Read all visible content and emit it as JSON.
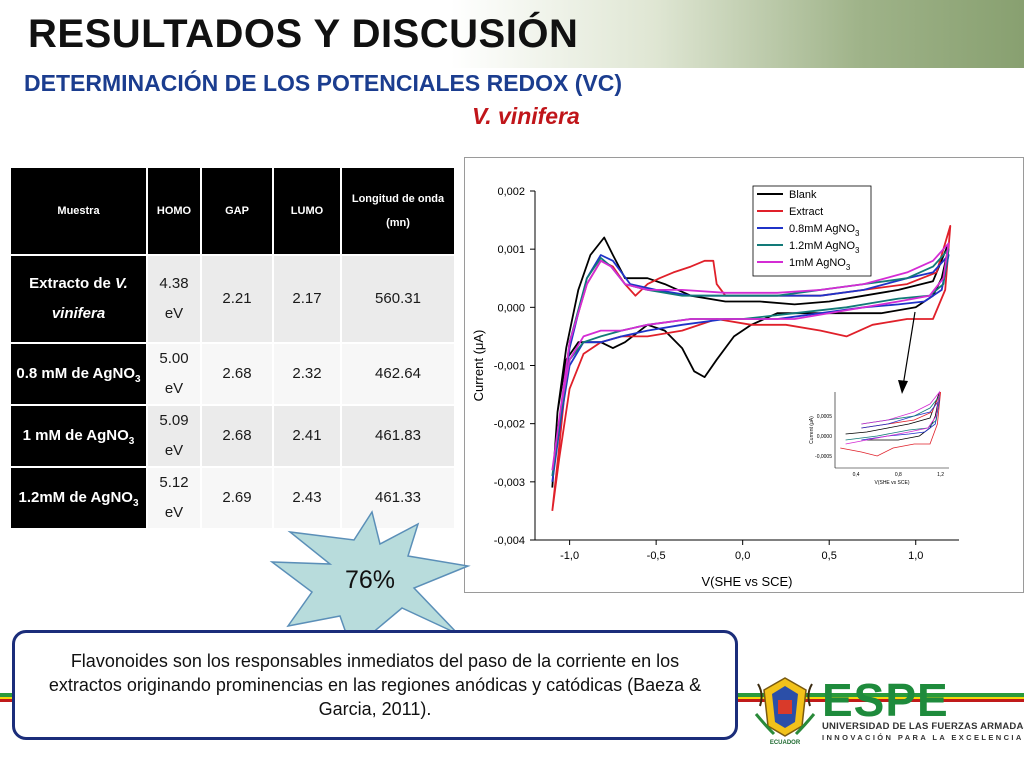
{
  "header": {
    "title": "RESULTADOS Y DISCUSIÓN",
    "subtitle": "DETERMINACIÓN DE LOS POTENCIALES REDOX (VC)",
    "species": "V. vinifera"
  },
  "table": {
    "headers": [
      "Muestra",
      "HOMO",
      "GAP",
      "LUMO",
      "Longitud de onda (mn)"
    ],
    "rows": [
      {
        "muestra": "Extracto de ",
        "muestra_italic": "V. vinifera",
        "homo": "4.38 eV",
        "gap": "2.21",
        "lumo": "2.17",
        "wavelength": "560.31"
      },
      {
        "muestra": "0.8 mM de AgNO",
        "sub": "3",
        "homo": "5.00 eV",
        "gap": "2.68",
        "lumo": "2.32",
        "wavelength": "462.64"
      },
      {
        "muestra": "1 mM de AgNO",
        "sub": "3",
        "homo": "5.09 eV",
        "gap": "2.68",
        "lumo": "2.41",
        "wavelength": "461.83"
      },
      {
        "muestra": "1.2mM de AgNO",
        "sub": "3",
        "homo": "5.12 eV",
        "gap": "2.69",
        "lumo": "2.43",
        "wavelength": "461.33"
      }
    ]
  },
  "chart_data": {
    "type": "line",
    "xlabel": "V(SHE vs SCE)",
    "ylabel": "Current (μA)",
    "xlim": [
      -1.2,
      1.25
    ],
    "ylim": [
      -0.004,
      0.002
    ],
    "x_ticks": [
      "-1,0",
      "-0,5",
      "0,0",
      "0,5",
      "1,0"
    ],
    "y_ticks": [
      "0,002",
      "0,001",
      "0,000",
      "-0,001",
      "-0,002",
      "-0,003",
      "-0,004"
    ],
    "legend_position": "top-right",
    "grid": false,
    "series": [
      {
        "name": "Blank",
        "color": "#000000",
        "legend": "Blank",
        "points": [
          [
            -1.1,
            -0.0031
          ],
          [
            -1.07,
            -0.0018
          ],
          [
            -1.02,
            -0.0009
          ],
          [
            -0.95,
            -0.0006
          ],
          [
            -0.88,
            -0.0006
          ],
          [
            -0.82,
            -0.0006
          ],
          [
            -0.75,
            -0.0007
          ],
          [
            -0.68,
            -0.0006
          ],
          [
            -0.55,
            -0.0003
          ],
          [
            -0.45,
            -0.0004
          ],
          [
            -0.35,
            -0.0007
          ],
          [
            -0.28,
            -0.0011
          ],
          [
            -0.22,
            -0.0012
          ],
          [
            -0.15,
            -0.0009
          ],
          [
            -0.05,
            -0.0005
          ],
          [
            0.05,
            -0.0003
          ],
          [
            0.2,
            -0.0001
          ],
          [
            0.5,
            -0.0001
          ],
          [
            0.8,
            -0.0001
          ],
          [
            1.0,
            0.0
          ],
          [
            1.1,
            0.0002
          ],
          [
            1.15,
            0.0005
          ],
          [
            1.18,
            0.0009
          ],
          [
            1.19,
            0.0011
          ],
          [
            1.1,
            0.00045
          ],
          [
            0.9,
            0.0003
          ],
          [
            0.7,
            0.0002
          ],
          [
            0.5,
            0.0001
          ],
          [
            0.3,
            5e-05
          ],
          [
            0.1,
            0.0001
          ],
          [
            -0.1,
            0.0001
          ],
          [
            -0.3,
            0.0002
          ],
          [
            -0.45,
            0.0004
          ],
          [
            -0.55,
            0.0005
          ],
          [
            -0.6,
            0.0005
          ],
          [
            -0.68,
            0.0005
          ],
          [
            -0.75,
            0.0009
          ],
          [
            -0.8,
            0.0012
          ],
          [
            -0.88,
            0.0009
          ],
          [
            -0.95,
            0.0003
          ],
          [
            -1.02,
            -0.0007
          ],
          [
            -1.07,
            -0.0018
          ],
          [
            -1.1,
            -0.0031
          ]
        ]
      },
      {
        "name": "Extract",
        "color": "#e0202a",
        "legend": "Extract",
        "points": [
          [
            -1.1,
            -0.0035
          ],
          [
            -1.06,
            -0.0026
          ],
          [
            -1.0,
            -0.0014
          ],
          [
            -0.92,
            -0.0008
          ],
          [
            -0.82,
            -0.0006
          ],
          [
            -0.7,
            -0.0005
          ],
          [
            -0.55,
            -0.0005
          ],
          [
            -0.35,
            -0.0004
          ],
          [
            -0.15,
            -0.0002
          ],
          [
            0.05,
            -0.0003
          ],
          [
            0.25,
            -0.0003
          ],
          [
            0.45,
            -0.0004
          ],
          [
            0.6,
            -0.0005
          ],
          [
            0.75,
            -0.0003
          ],
          [
            0.95,
            -0.0002
          ],
          [
            1.1,
            -0.0002
          ],
          [
            1.17,
            0.0003
          ],
          [
            1.2,
            0.0014
          ],
          [
            1.12,
            0.0006
          ],
          [
            0.95,
            0.0004
          ],
          [
            0.7,
            0.0003
          ],
          [
            0.45,
            0.0002
          ],
          [
            0.2,
            0.0002
          ],
          [
            0.0,
            0.0002
          ],
          [
            -0.1,
            0.0002
          ],
          [
            -0.15,
            0.0004
          ],
          [
            -0.17,
            0.0008
          ],
          [
            -0.22,
            0.0008
          ],
          [
            -0.3,
            0.0007
          ],
          [
            -0.4,
            0.0006
          ],
          [
            -0.48,
            0.0005
          ],
          [
            -0.55,
            0.0004
          ],
          [
            -0.62,
            0.0002
          ],
          [
            -0.68,
            0.0004
          ],
          [
            -0.75,
            0.0007
          ],
          [
            -0.82,
            0.0008
          ],
          [
            -0.9,
            0.0004
          ],
          [
            -1.0,
            -0.0006
          ],
          [
            -1.06,
            -0.0024
          ],
          [
            -1.1,
            -0.0035
          ]
        ]
      },
      {
        "name": "0.8mM AgNO3",
        "color": "#1f33c8",
        "legend_main": "0.8mM AgNO",
        "legend_sub": "3",
        "points": [
          [
            -1.1,
            -0.003
          ],
          [
            -1.05,
            -0.0019
          ],
          [
            -1.0,
            -0.001
          ],
          [
            -0.92,
            -0.0006
          ],
          [
            -0.82,
            -0.0006
          ],
          [
            -0.7,
            -0.0005
          ],
          [
            -0.55,
            -0.0004
          ],
          [
            -0.35,
            -0.0003
          ],
          [
            -0.1,
            -0.0002
          ],
          [
            0.2,
            -0.0002
          ],
          [
            0.45,
            -0.0001
          ],
          [
            0.7,
            0.0
          ],
          [
            0.9,
            5e-05
          ],
          [
            1.05,
            0.0001
          ],
          [
            1.15,
            0.0003
          ],
          [
            1.19,
            0.0009
          ],
          [
            1.1,
            0.0006
          ],
          [
            0.95,
            0.0005
          ],
          [
            0.7,
            0.0003
          ],
          [
            0.45,
            0.0002
          ],
          [
            0.2,
            0.0002
          ],
          [
            -0.1,
            0.0002
          ],
          [
            -0.3,
            0.0002
          ],
          [
            -0.5,
            0.0003
          ],
          [
            -0.65,
            0.0004
          ],
          [
            -0.75,
            0.0008
          ],
          [
            -0.82,
            0.0009
          ],
          [
            -0.9,
            0.0005
          ],
          [
            -1.0,
            -0.0007
          ],
          [
            -1.05,
            -0.0019
          ],
          [
            -1.1,
            -0.003
          ]
        ]
      },
      {
        "name": "1.2mM AgNO3",
        "color": "#127a78",
        "legend_main": "1.2mM AgNO",
        "legend_sub": "3",
        "points": [
          [
            -1.1,
            -0.0029
          ],
          [
            -1.05,
            -0.0018
          ],
          [
            -1.0,
            -0.0009
          ],
          [
            -0.92,
            -0.0006
          ],
          [
            -0.82,
            -0.0005
          ],
          [
            -0.7,
            -0.0004
          ],
          [
            -0.55,
            -0.0003
          ],
          [
            -0.3,
            -0.0002
          ],
          [
            0.0,
            -0.0002
          ],
          [
            0.3,
            -0.0001
          ],
          [
            0.6,
            0.0
          ],
          [
            0.9,
            0.00015
          ],
          [
            1.08,
            0.0002
          ],
          [
            1.16,
            0.0004
          ],
          [
            1.19,
            0.001
          ],
          [
            1.1,
            0.0007
          ],
          [
            0.95,
            0.0005
          ],
          [
            0.7,
            0.0004
          ],
          [
            0.45,
            0.0003
          ],
          [
            0.2,
            0.0002
          ],
          [
            -0.1,
            0.0002
          ],
          [
            -0.35,
            0.0002
          ],
          [
            -0.55,
            0.0003
          ],
          [
            -0.68,
            0.0004
          ],
          [
            -0.76,
            0.0007
          ],
          [
            -0.82,
            0.00085
          ],
          [
            -0.9,
            0.0005
          ],
          [
            -1.0,
            -0.0006
          ],
          [
            -1.05,
            -0.0018
          ],
          [
            -1.1,
            -0.0029
          ]
        ]
      },
      {
        "name": "1mM AgNO3",
        "color": "#d42cd4",
        "legend_main": "1mM AgNO",
        "legend_sub": "3",
        "points": [
          [
            -1.1,
            -0.0028
          ],
          [
            -1.05,
            -0.0017
          ],
          [
            -1.0,
            -0.0009
          ],
          [
            -0.92,
            -0.0005
          ],
          [
            -0.82,
            -0.0004
          ],
          [
            -0.7,
            -0.0004
          ],
          [
            -0.55,
            -0.0003
          ],
          [
            -0.3,
            -0.0002
          ],
          [
            0.0,
            -0.0002
          ],
          [
            0.3,
            -0.0002
          ],
          [
            0.6,
            -5e-05
          ],
          [
            0.9,
            0.0001
          ],
          [
            1.08,
            0.0002
          ],
          [
            1.16,
            0.0005
          ],
          [
            1.19,
            0.0011
          ],
          [
            1.1,
            0.0008
          ],
          [
            0.95,
            0.0006
          ],
          [
            0.7,
            0.0004
          ],
          [
            0.45,
            0.0003
          ],
          [
            0.2,
            0.00025
          ],
          [
            -0.1,
            0.00025
          ],
          [
            -0.35,
            0.0003
          ],
          [
            -0.55,
            0.0003
          ],
          [
            -0.68,
            0.0004
          ],
          [
            -0.76,
            0.0007
          ],
          [
            -0.82,
            0.0008
          ],
          [
            -0.9,
            0.0004
          ],
          [
            -1.0,
            -0.0006
          ],
          [
            -1.05,
            -0.0017
          ],
          [
            -1.1,
            -0.0028
          ]
        ]
      }
    ],
    "inset": {
      "xlabel": "V(SHE vs SCE)",
      "ylabel": "Current (μA)",
      "x_ticks": [
        "0,4",
        "0,8",
        "1,2"
      ],
      "y_ticks": [
        "0,0005",
        "0,0000",
        "-0,0005"
      ]
    }
  },
  "callout": {
    "value": "76%"
  },
  "note": {
    "text": "Flavonoides son los responsables inmediatos del paso de la corriente en los extractos originando prominencias en las regiones anódicas y catódicas (Baeza & Garcia, 2011)."
  },
  "logo": {
    "word": "ESPE",
    "line1": "UNIVERSIDAD DE LAS FUERZAS ARMADAS",
    "line2": "INNOVACIÓN PARA LA EXCELENCIA",
    "crest_caption": "ECUADOR"
  },
  "colors": {
    "subtitle": "#1b3d8f",
    "species": "#c0151a",
    "logo_green": "#1e8b3c",
    "note_border": "#1b2d7a",
    "burst": "#b8dcdc"
  }
}
